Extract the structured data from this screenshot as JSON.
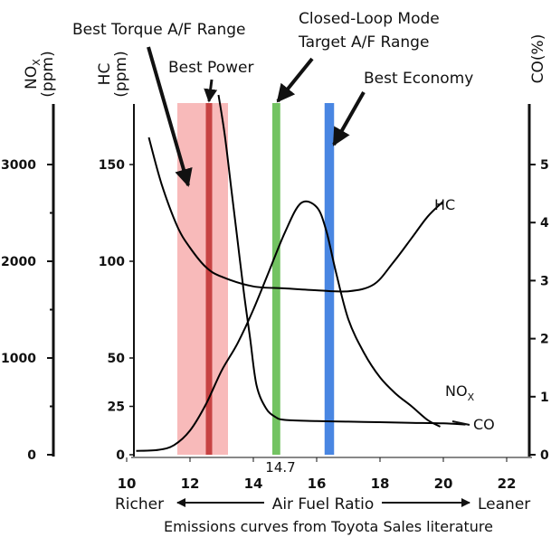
{
  "chart_data": {
    "type": "line",
    "title": "",
    "caption": "Emissions curves from Toyota Sales literature",
    "xlabel": "Air Fuel Ratio",
    "x_left_label": "Richer",
    "x_right_label": "Leaner",
    "xlim": [
      10,
      22
    ],
    "x_ticks": [
      "10",
      "12",
      "14",
      "16",
      "18",
      "20",
      "22"
    ],
    "marker_label": "14.7",
    "axes": {
      "nox": {
        "title": "NOx (ppm)",
        "title_main": "NO",
        "title_sub": "X",
        "title_unit": "(ppm)",
        "ticks": [
          "3000",
          "2000",
          "1000",
          "0"
        ],
        "lim": [
          0,
          3500
        ]
      },
      "hc": {
        "title": "HC (ppm)",
        "title_main": "HC",
        "title_unit": "(ppm)",
        "ticks": [
          "150",
          "100",
          "50",
          "25",
          "0"
        ],
        "lim": [
          0,
          175
        ]
      },
      "co": {
        "title": "CO(%)",
        "ticks": [
          "5",
          "4",
          "3",
          "2",
          "1",
          "0"
        ],
        "lim": [
          0,
          6
        ]
      }
    },
    "regions": [
      {
        "name": "Best Torque A/F Range",
        "x": [
          11.6,
          13.2
        ],
        "color": "#f5a3a3"
      },
      {
        "name": "Best Power",
        "x": [
          12.5,
          12.7
        ],
        "color": "#c43c3c"
      },
      {
        "name": "Closed-Loop Mode Target A/F Range",
        "label_lines": [
          "Closed-Loop Mode",
          "Target A/F Range"
        ],
        "x": [
          14.6,
          14.85
        ],
        "color": "#6cc05a"
      },
      {
        "name": "Best Economy",
        "x": [
          16.25,
          16.55
        ],
        "color": "#3f7fe0"
      }
    ],
    "series": [
      {
        "name": "HC",
        "axis": "hc",
        "color": "#000000",
        "x": [
          10.7,
          11.1,
          11.6,
          12.0,
          12.5,
          13.0,
          14.0,
          15.0,
          16.0,
          17.0,
          17.8,
          18.4,
          19.0,
          19.5,
          20.0
        ],
        "y": [
          164,
          140,
          118,
          107,
          97,
          92,
          87,
          86,
          85,
          84.5,
          88,
          99,
          112,
          123,
          131
        ]
      },
      {
        "name": "NOx",
        "axis": "nox",
        "color": "#000000",
        "x": [
          10.3,
          11.0,
          11.5,
          12.0,
          12.5,
          13.0,
          13.5,
          14.0,
          14.5,
          15.0,
          15.5,
          16.0,
          16.3,
          16.6,
          17.0,
          17.5,
          18.0,
          18.5,
          19.0,
          19.5,
          19.9
        ],
        "y": [
          40,
          50,
          100,
          250,
          520,
          870,
          1150,
          1500,
          1900,
          2300,
          2600,
          2560,
          2320,
          1900,
          1400,
          1050,
          800,
          630,
          500,
          360,
          290
        ]
      },
      {
        "name": "CO",
        "axis": "co",
        "color": "#000000",
        "x": [
          12.9,
          13.1,
          13.3,
          13.5,
          13.7,
          13.9,
          14.1,
          14.4,
          14.7,
          15.0,
          16.0,
          17.0,
          18.0,
          19.0,
          20.0,
          20.7
        ],
        "y": [
          6.2,
          5.5,
          4.6,
          3.7,
          2.8,
          2.0,
          1.2,
          0.8,
          0.65,
          0.6,
          0.58,
          0.57,
          0.56,
          0.55,
          0.54,
          0.52
        ]
      }
    ]
  }
}
